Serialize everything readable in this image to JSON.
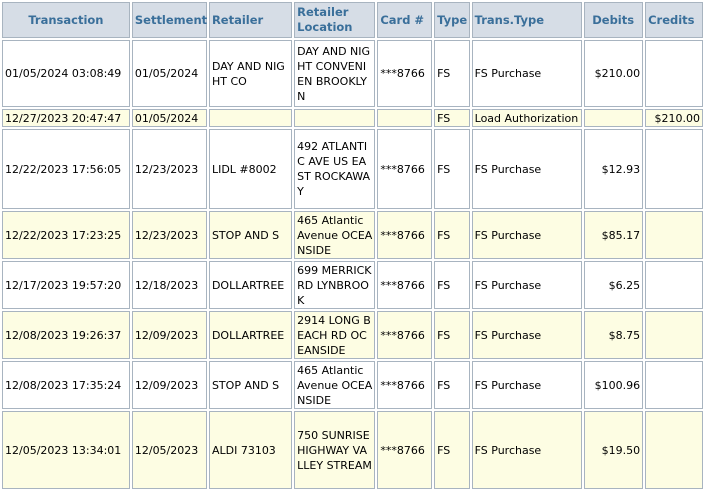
{
  "columns": [
    {
      "label": "Transaction",
      "key": "transaction"
    },
    {
      "label": "Settlement",
      "key": "settlement"
    },
    {
      "label": "Retailer",
      "key": "retailer"
    },
    {
      "label": "Retailer Location",
      "key": "location"
    },
    {
      "label": "Card #",
      "key": "card"
    },
    {
      "label": "Type",
      "key": "type"
    },
    {
      "label": "Trans.Type",
      "key": "trans_type"
    },
    {
      "label": "Debits",
      "key": "debits"
    },
    {
      "label": "Credits",
      "key": "credits"
    }
  ],
  "rows": [
    {
      "transaction": "01/05/2024 03:08:49",
      "settlement": "01/05/2024",
      "retailer": "DAY AND NIGHT CO",
      "location": "DAY AND NIGHT CONVENIEN BROOKLYN",
      "card": "***8766",
      "type": "FS",
      "trans_type": "FS Purchase",
      "debits": "$210.00",
      "credits": ""
    },
    {
      "transaction": "12/27/2023 20:47:47",
      "settlement": "01/05/2024",
      "retailer": "",
      "location": "",
      "card": "",
      "type": "FS",
      "trans_type": "Load Authorization",
      "debits": "",
      "credits": "$210.00"
    },
    {
      "transaction": "12/22/2023 17:56:05",
      "settlement": "12/23/2023",
      "retailer": "LIDL #8002",
      "location": "492 ATLANTIC AVE US EAST ROCKAWAY",
      "card": "***8766",
      "type": "FS",
      "trans_type": "FS Purchase",
      "debits": "$12.93",
      "credits": ""
    },
    {
      "transaction": "12/22/2023 17:23:25",
      "settlement": "12/23/2023",
      "retailer": "STOP AND S",
      "location": "465 Atlantic Avenue OCEANSIDE",
      "card": "***8766",
      "type": "FS",
      "trans_type": "FS Purchase",
      "debits": "$85.17",
      "credits": ""
    },
    {
      "transaction": "12/17/2023 19:57:20",
      "settlement": "12/18/2023",
      "retailer": "DOLLARTREE",
      "location": "699 MERRICK RD LYNBROOK",
      "card": "***8766",
      "type": "FS",
      "trans_type": "FS Purchase",
      "debits": "$6.25",
      "credits": ""
    },
    {
      "transaction": "12/08/2023 19:26:37",
      "settlement": "12/09/2023",
      "retailer": "DOLLARTREE",
      "location": "2914 LONG BEACH RD OCEANSIDE",
      "card": "***8766",
      "type": "FS",
      "trans_type": "FS Purchase",
      "debits": "$8.75",
      "credits": ""
    },
    {
      "transaction": "12/08/2023 17:35:24",
      "settlement": "12/09/2023",
      "retailer": "STOP AND S",
      "location": "465 Atlantic Avenue OCEANSIDE",
      "card": "***8766",
      "type": "FS",
      "trans_type": "FS Purchase",
      "debits": "$100.96",
      "credits": ""
    },
    {
      "transaction": "12/05/2023 13:34:01",
      "settlement": "12/05/2023",
      "retailer": "ALDI 73103",
      "location": "750 SUNRISE HIGHWAY VALLEY STREAM",
      "card": "***8766",
      "type": "FS",
      "trans_type": "FS Purchase",
      "debits": "$19.50",
      "credits": ""
    }
  ]
}
